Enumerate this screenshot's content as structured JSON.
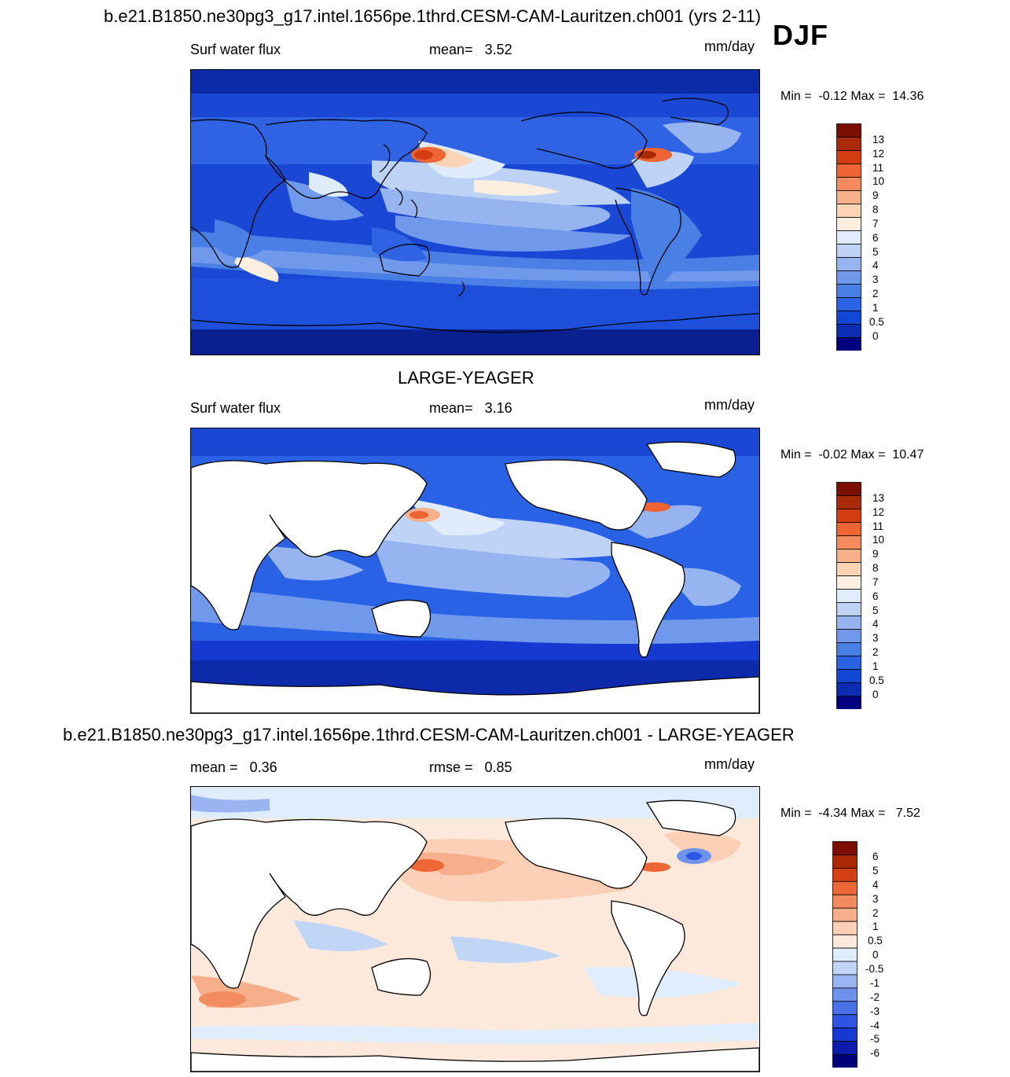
{
  "figure": {
    "main_title": "b.e21.B1850.ne30pg3_g17.intel.1656pe.1thrd.CESM-CAM-Lauritzen.ch001 (yrs 2-11)",
    "season": "DJF"
  },
  "panels": [
    {
      "id": "model",
      "variable": "Surf water flux",
      "stat_label": "mean=",
      "stat_value": "3.52",
      "units": "mm/day",
      "min_label": "Min =",
      "min_value": "-0.12",
      "max_label": "Max =",
      "max_value": "14.36",
      "colorbar_labels": [
        "13",
        "12",
        "11",
        "10",
        "9",
        "8",
        "7",
        "6",
        "5",
        "4",
        "3",
        "2",
        "1",
        "0.5",
        "0"
      ]
    },
    {
      "id": "obs",
      "title": "LARGE-YEAGER",
      "variable": "Surf water flux",
      "stat_label": "mean=",
      "stat_value": "3.16",
      "units": "mm/day",
      "min_label": "Min =",
      "min_value": "-0.02",
      "max_label": "Max =",
      "max_value": "10.47",
      "colorbar_labels": [
        "13",
        "12",
        "11",
        "10",
        "9",
        "8",
        "7",
        "6",
        "5",
        "4",
        "3",
        "2",
        "1",
        "0.5",
        "0"
      ]
    },
    {
      "id": "diff",
      "title": "b.e21.B1850.ne30pg3_g17.intel.1656pe.1thrd.CESM-CAM-Lauritzen.ch001 - LARGE-YEAGER",
      "stat1_label": "mean =",
      "stat1_value": "0.36",
      "stat2_label": "rmse =",
      "stat2_value": "0.85",
      "units": "mm/day",
      "min_label": "Min =",
      "min_value": "-4.34",
      "max_label": "Max =",
      "max_value": "7.52",
      "colorbar_labels": [
        "6",
        "5",
        "4",
        "3",
        "2",
        "1",
        "0.5",
        "0",
        "-0.5",
        "-1",
        "-2",
        "-3",
        "-4",
        "-5",
        "-6"
      ]
    }
  ],
  "colors": {
    "abs_scale": [
      "#000080",
      "#0a2db3",
      "#1247d6",
      "#2a62e6",
      "#4a7fe6",
      "#7099eb",
      "#96b5f0",
      "#bfd3f7",
      "#e0ecfb",
      "#fdeee0",
      "#fbd3b5",
      "#f7b08a",
      "#f58a5f",
      "#ee6432",
      "#d43c12",
      "#a82a06",
      "#7a0f00"
    ],
    "diff_scale": [
      "#00007a",
      "#0d1cab",
      "#1639d2",
      "#2c55e3",
      "#4a72e7",
      "#6f93ec",
      "#9ab4f1",
      "#c1d5f7",
      "#e0edfc",
      "#fde9dc",
      "#fbd0b6",
      "#f7ae8a",
      "#f38b61",
      "#ec6636",
      "#d53f14",
      "#ab2906",
      "#7b0e00"
    ],
    "land": "#ffffff"
  }
}
